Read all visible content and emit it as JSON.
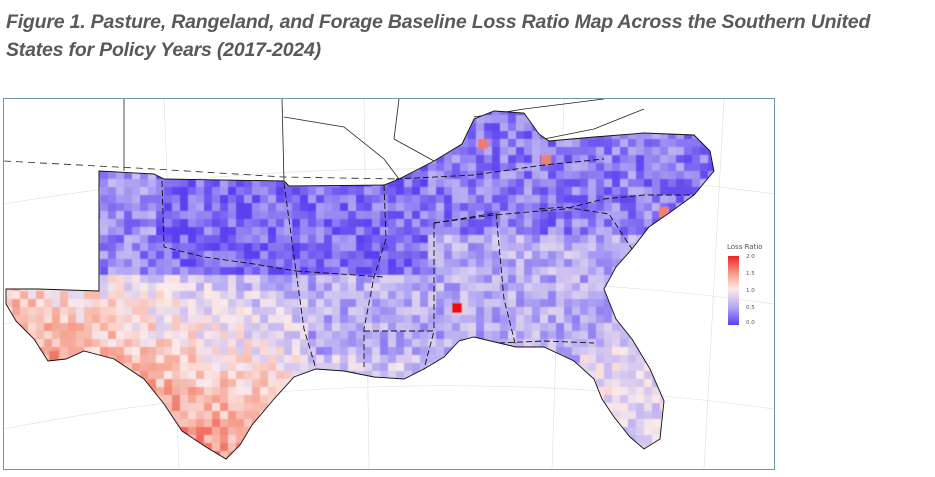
{
  "figure": {
    "caption": "Figure 1. Pasture, Rangeland, and Forage Baseline Loss Ratio Map Across the Southern United States for Policy Years (2017-2024)"
  },
  "legend": {
    "title": "Loss Ratio",
    "ticks": [
      "2.0",
      "1.5",
      "1.0",
      "0.5",
      "0.0"
    ],
    "colors": {
      "high": "#ee2222",
      "mid_high": "#f59a86",
      "mid": "#fbeaea",
      "mid_low": "#b3a9f3",
      "low": "#5a3ff0"
    }
  },
  "map": {
    "state_border_color": "#111111",
    "outside_background": "#ffffff"
  }
}
